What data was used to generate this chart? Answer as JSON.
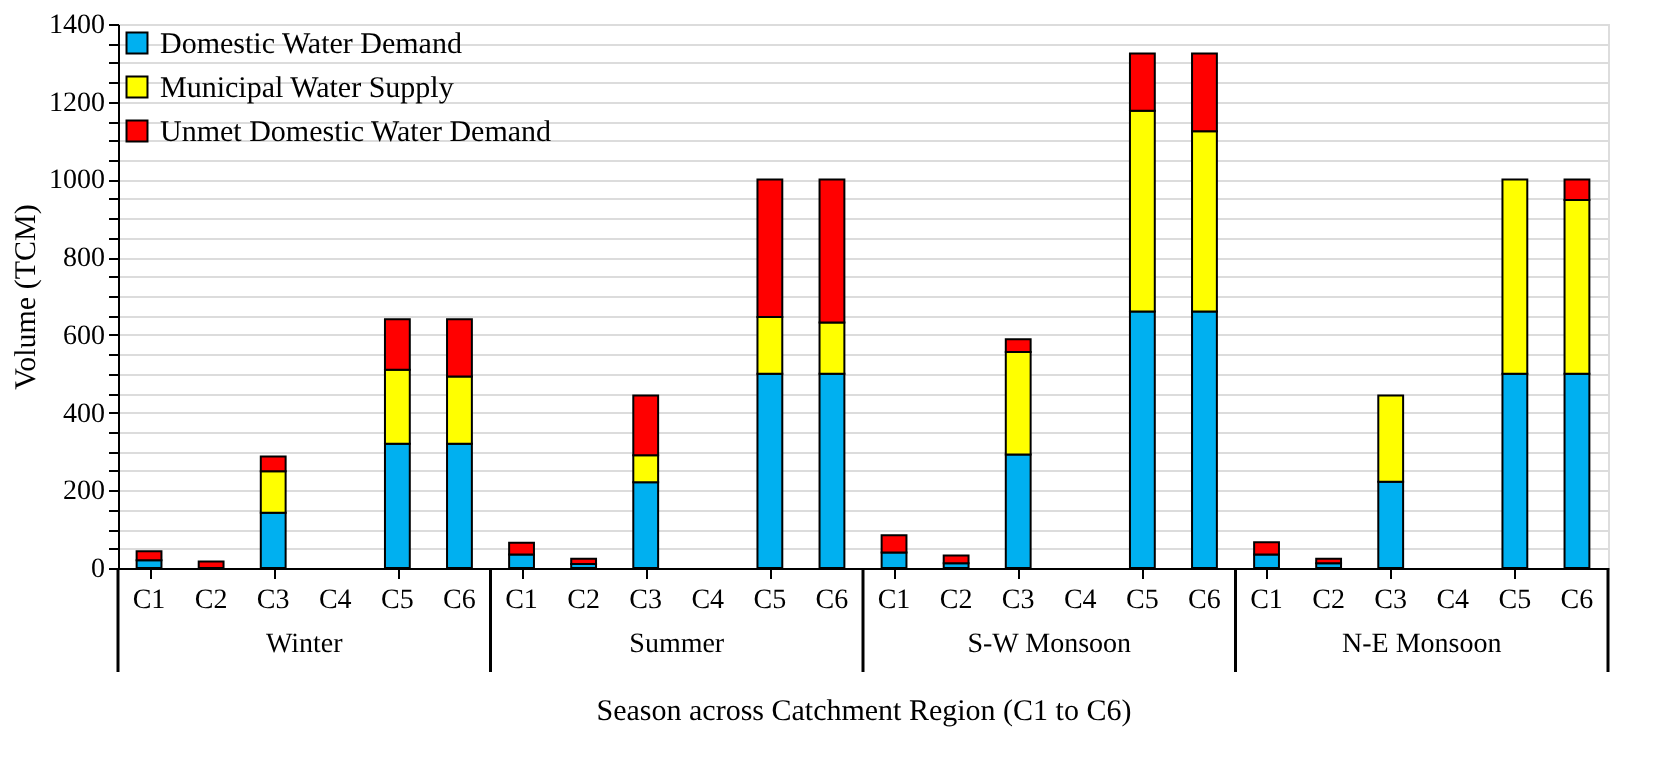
{
  "chart_data": {
    "type": "bar",
    "stacked": true,
    "xlabel": "Season across Catchment Region (C1 to C6)",
    "ylabel": "Volume (TCM)",
    "categories": [
      "C1",
      "C2",
      "C3",
      "C4",
      "C5",
      "C6",
      "C1",
      "C2",
      "C3",
      "C4",
      "C5",
      "C6",
      "C1",
      "C2",
      "C3",
      "C4",
      "C5",
      "C6",
      "C1",
      "C2",
      "C3",
      "C4",
      "C5",
      "C6"
    ],
    "annotations": [
      "Winter",
      "Summer",
      "S-W Monsoon",
      "N-E Monsoon"
    ],
    "series": [
      {
        "name": "Domestic Water Demand",
        "color": "#00b0f0",
        "values": [
          20,
          null,
          142,
          0,
          320,
          320,
          35,
          10,
          221,
          0,
          500,
          500,
          40,
          12,
          292,
          0,
          660,
          660,
          35,
          12,
          222,
          0,
          500,
          500
        ]
      },
      {
        "name": "Municipal Water Supply",
        "color": "#ffff00",
        "values": [
          0,
          0,
          107,
          0,
          190,
          173,
          0,
          0,
          69,
          0,
          146,
          132,
          0,
          0,
          264,
          0,
          517,
          464,
          0,
          0,
          222,
          0,
          500,
          447
        ]
      },
      {
        "name": "Unmet Domestic Water Demand",
        "color": "#ff0000",
        "values": [
          23,
          17,
          38,
          0,
          130,
          147,
          30,
          14,
          154,
          0,
          354,
          368,
          44,
          20,
          33,
          0,
          147,
          200,
          31,
          12,
          0,
          0,
          0,
          53
        ]
      }
    ],
    "ylim": [
      0,
      1400
    ],
    "yticks": [
      0,
      {
        "value": 50,
        "label": null
      },
      {
        "value": 100,
        "label": null
      },
      {
        "value": 150,
        "label": null
      },
      200,
      {
        "value": 250,
        "label": null
      },
      {
        "value": 300,
        "label": null
      },
      {
        "value": 350,
        "label": null
      },
      400,
      {
        "value": 450,
        "label": null
      },
      {
        "value": 500,
        "label": null
      },
      {
        "value": 550,
        "label": null
      },
      600,
      {
        "value": 650,
        "label": null
      },
      {
        "value": 700,
        "label": null
      },
      {
        "value": 750,
        "label": null
      },
      800,
      {
        "value": 850,
        "label": null
      },
      {
        "value": 900,
        "label": null
      },
      {
        "value": 950,
        "label": null
      },
      1000,
      {
        "value": 1050,
        "label": null
      },
      {
        "value": 1100,
        "label": null
      },
      {
        "value": 1150,
        "label": null
      },
      1200,
      {
        "value": 1250,
        "label": null
      },
      {
        "value": 1300,
        "label": null
      },
      {
        "value": 1350,
        "label": null
      },
      1400
    ],
    "grid": "y",
    "legend": "top left"
  }
}
